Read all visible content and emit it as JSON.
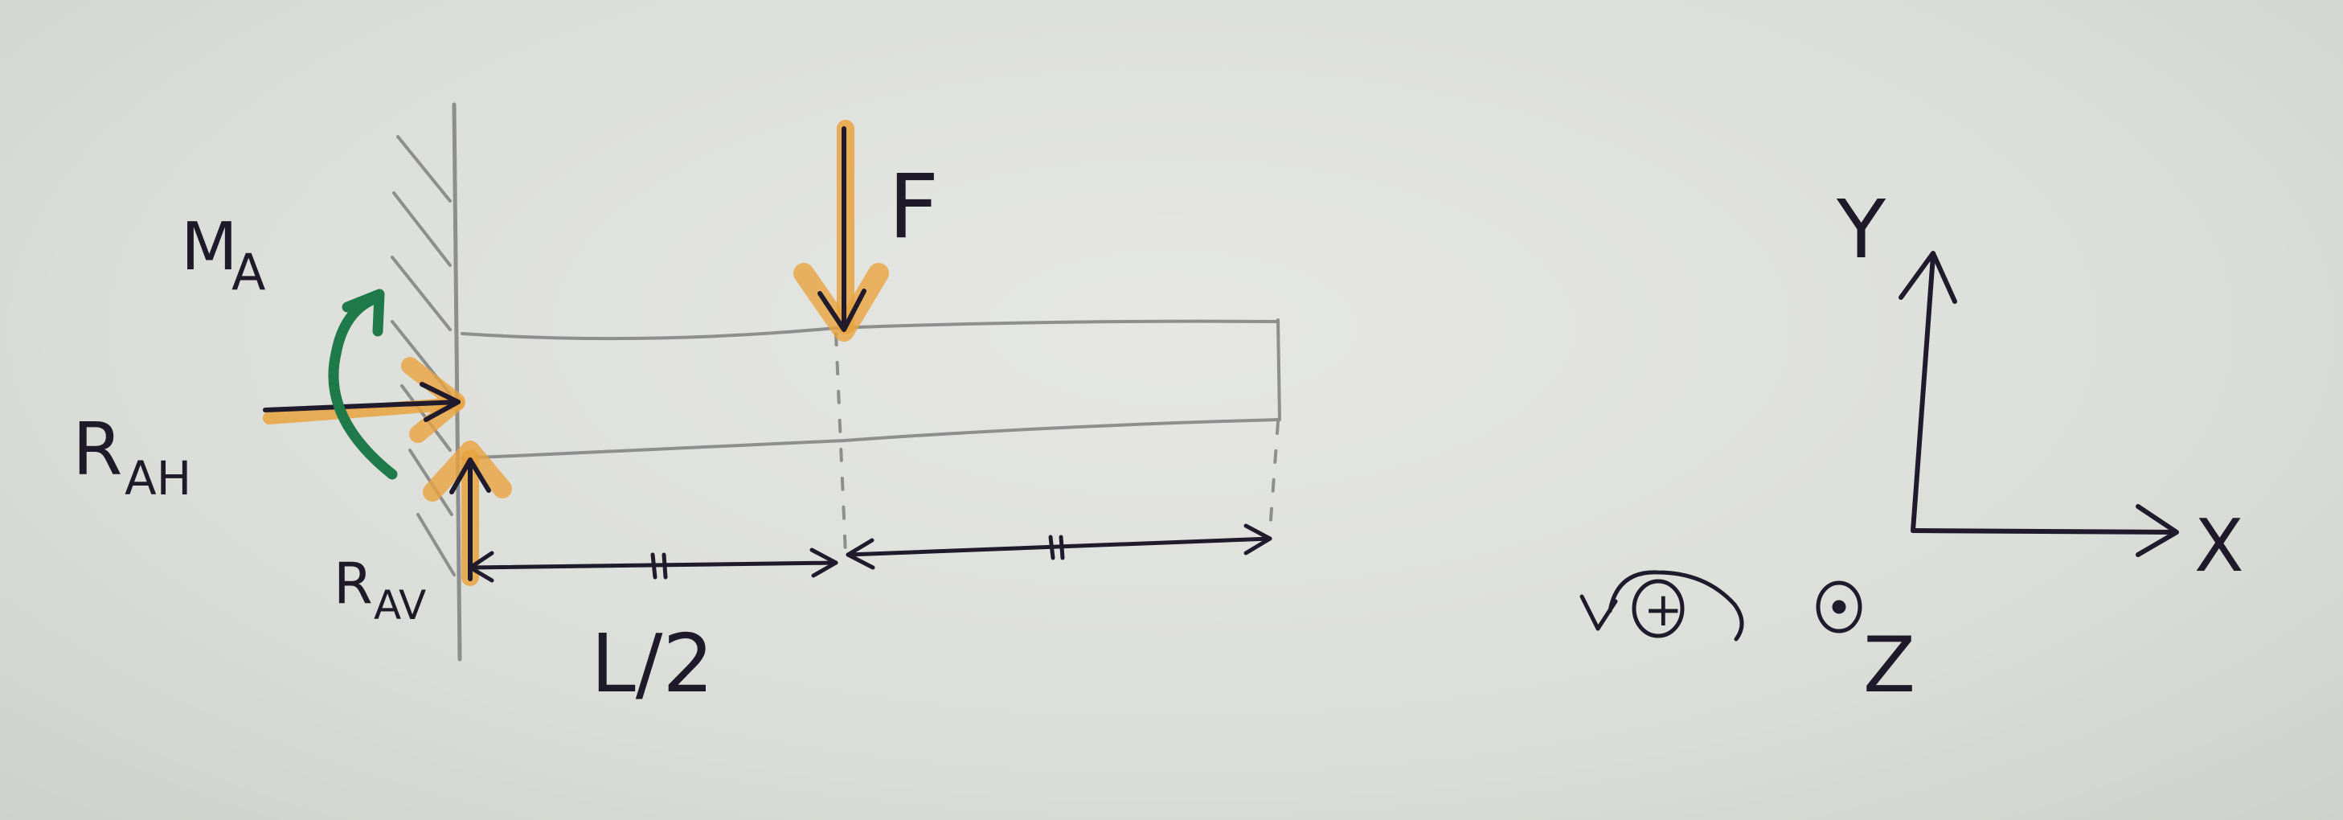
{
  "labels": {
    "moment": "M",
    "moment_sub": "A",
    "force": "F",
    "reaction_h": "R",
    "reaction_h_sub": "AH",
    "reaction_v": "R",
    "reaction_v_sub": "AV",
    "half_length": "L/2",
    "axis_x": "X",
    "axis_y": "Y",
    "axis_z": "Z",
    "sign_positive": "+"
  },
  "colors": {
    "ink": "#1f1a2c",
    "pencil": "#8e8f8d",
    "highlight_force": "#e9a33e",
    "highlight_moment": "#1f7a4a",
    "paper": "#dcded9"
  }
}
